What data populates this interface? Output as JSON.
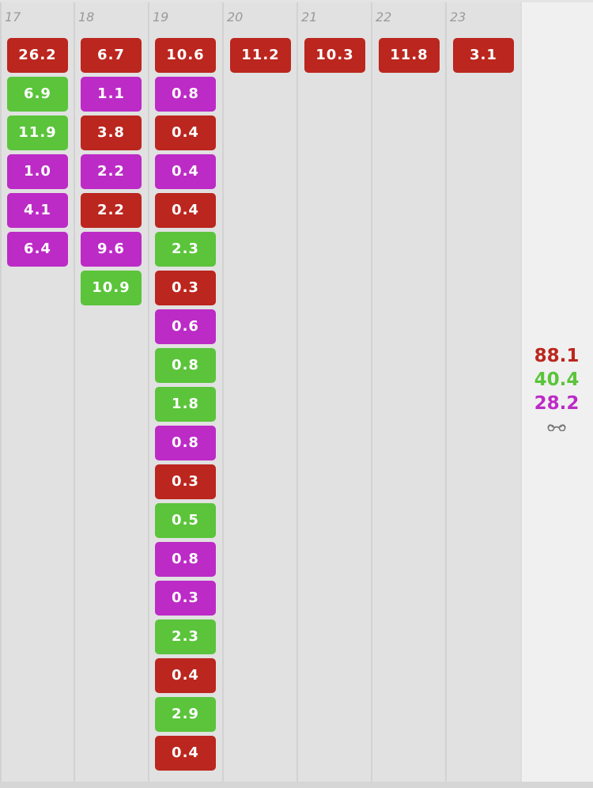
{
  "colors": {
    "red": "#bb261e",
    "green": "#5bc43b",
    "purple": "#bc2bc6"
  },
  "days": [
    {
      "day": "17",
      "entries": [
        {
          "value": "26.2",
          "color": "red"
        },
        {
          "value": "6.9",
          "color": "green"
        },
        {
          "value": "11.9",
          "color": "green"
        },
        {
          "value": "1.0",
          "color": "purple"
        },
        {
          "value": "4.1",
          "color": "purple"
        },
        {
          "value": "6.4",
          "color": "purple"
        }
      ]
    },
    {
      "day": "18",
      "entries": [
        {
          "value": "6.7",
          "color": "red"
        },
        {
          "value": "1.1",
          "color": "purple"
        },
        {
          "value": "3.8",
          "color": "red"
        },
        {
          "value": "2.2",
          "color": "purple"
        },
        {
          "value": "2.2",
          "color": "red"
        },
        {
          "value": "9.6",
          "color": "purple"
        },
        {
          "value": "10.9",
          "color": "green"
        }
      ]
    },
    {
      "day": "19",
      "entries": [
        {
          "value": "10.6",
          "color": "red"
        },
        {
          "value": "0.8",
          "color": "purple"
        },
        {
          "value": "0.4",
          "color": "red"
        },
        {
          "value": "0.4",
          "color": "purple"
        },
        {
          "value": "0.4",
          "color": "red"
        },
        {
          "value": "2.3",
          "color": "green"
        },
        {
          "value": "0.3",
          "color": "red"
        },
        {
          "value": "0.6",
          "color": "purple"
        },
        {
          "value": "0.8",
          "color": "green"
        },
        {
          "value": "1.8",
          "color": "green"
        },
        {
          "value": "0.8",
          "color": "purple"
        },
        {
          "value": "0.3",
          "color": "red"
        },
        {
          "value": "0.5",
          "color": "green"
        },
        {
          "value": "0.8",
          "color": "purple"
        },
        {
          "value": "0.3",
          "color": "purple"
        },
        {
          "value": "2.3",
          "color": "green"
        },
        {
          "value": "0.4",
          "color": "red"
        },
        {
          "value": "2.9",
          "color": "green"
        },
        {
          "value": "0.4",
          "color": "red"
        }
      ]
    },
    {
      "day": "20",
      "entries": [
        {
          "value": "11.2",
          "color": "red"
        }
      ]
    },
    {
      "day": "21",
      "entries": [
        {
          "value": "10.3",
          "color": "red"
        }
      ]
    },
    {
      "day": "22",
      "entries": [
        {
          "value": "11.8",
          "color": "red"
        }
      ]
    },
    {
      "day": "23",
      "entries": [
        {
          "value": "3.1",
          "color": "red"
        }
      ]
    }
  ],
  "summary": {
    "totals": [
      {
        "value": "88.1",
        "color": "red"
      },
      {
        "value": "40.4",
        "color": "green"
      },
      {
        "value": "28.2",
        "color": "purple"
      }
    ],
    "icon": "glasses-icon"
  }
}
